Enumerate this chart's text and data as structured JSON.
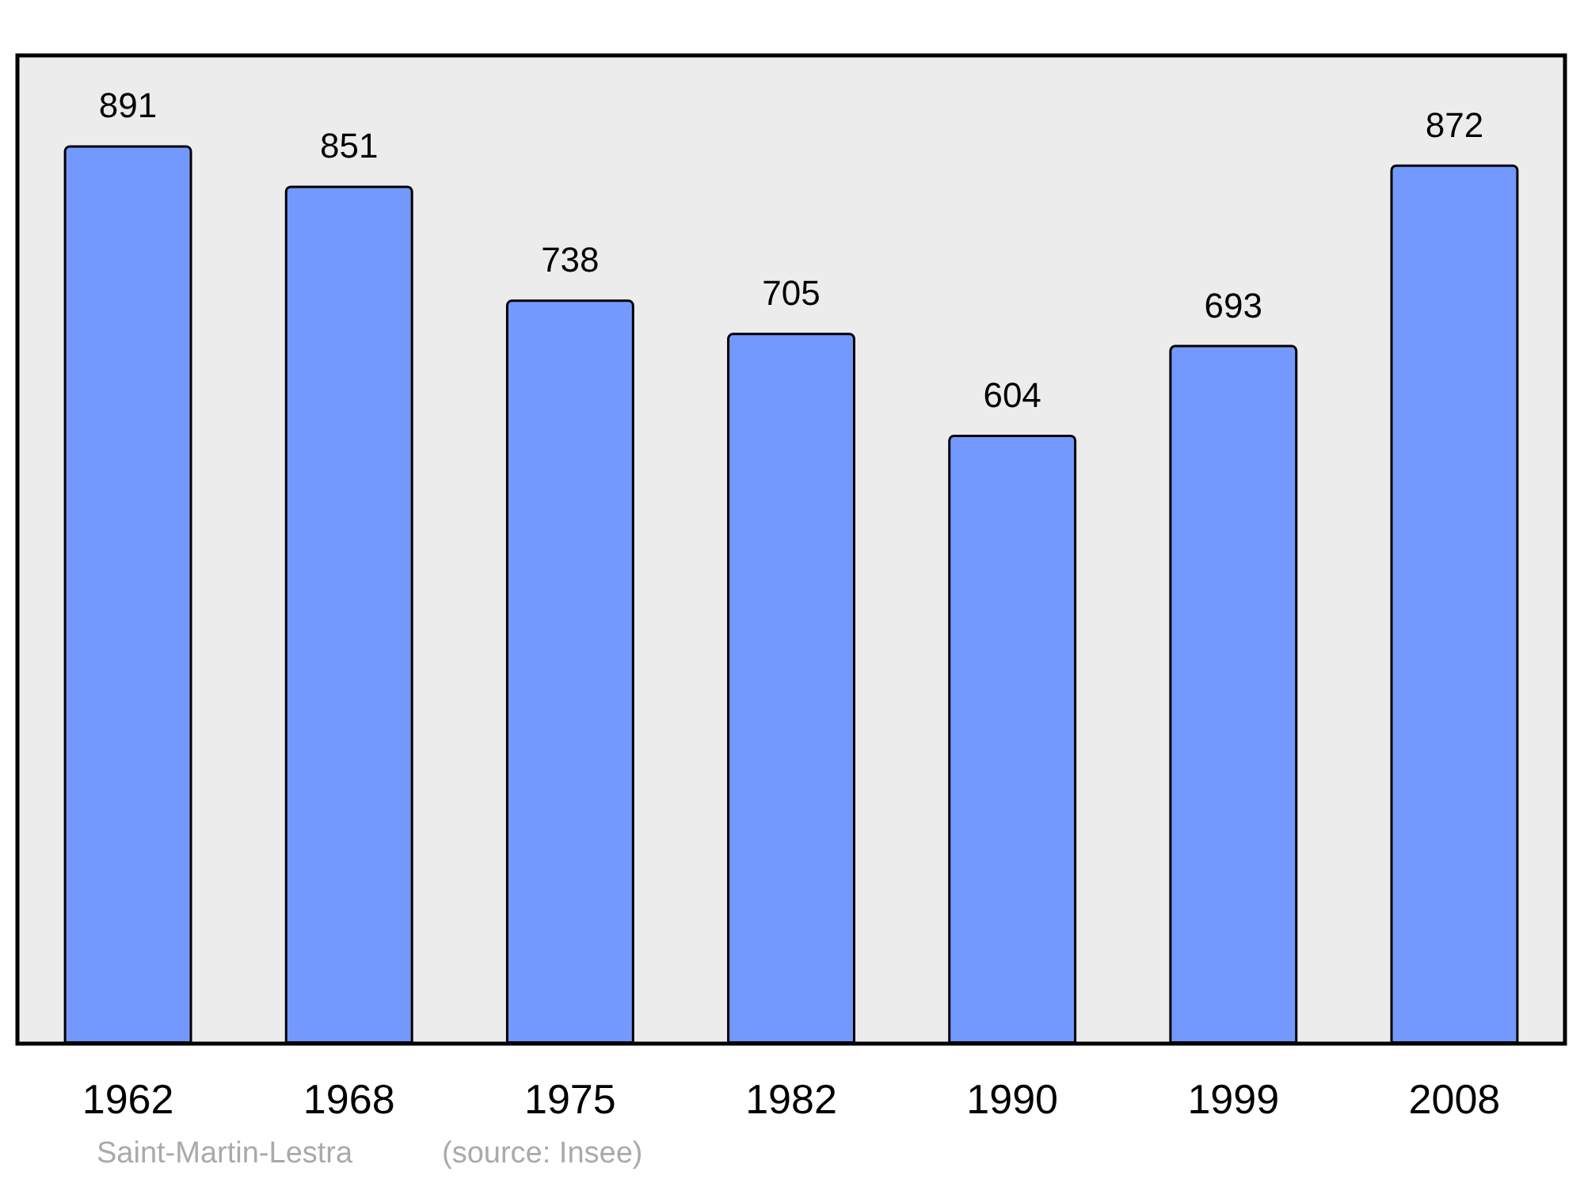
{
  "chart_data": {
    "type": "bar",
    "categories": [
      "1962",
      "1968",
      "1975",
      "1982",
      "1990",
      "1999",
      "2008"
    ],
    "values": [
      891,
      851,
      738,
      705,
      604,
      693,
      872
    ],
    "color": "#7399ff",
    "data_labels": true,
    "tick_labels": "x",
    "annotations": [
      "Saint-Martin-Lestra",
      "(source: Insee)"
    ]
  }
}
